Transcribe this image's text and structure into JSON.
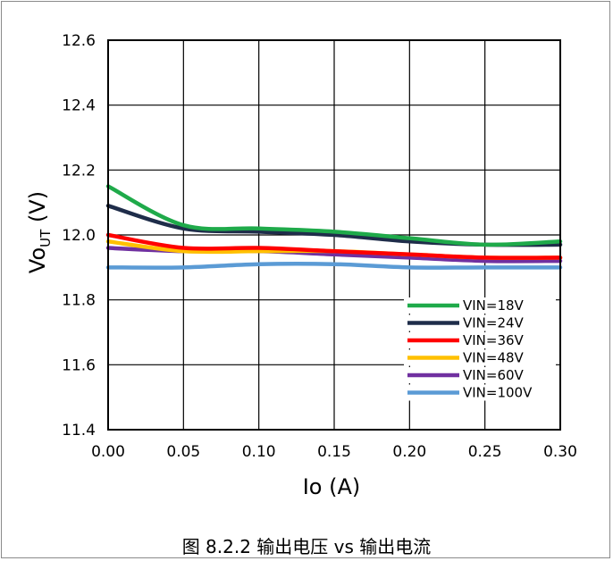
{
  "caption": "图 8.2.2 输出电压 vs 输出电流",
  "chart_data": {
    "type": "line",
    "xlabel": "Io (A)",
    "ylabel_main": "Vo",
    "ylabel_sub": "UT",
    "ylabel_unit": " (V)",
    "xlim": [
      0,
      0.3
    ],
    "ylim": [
      11.4,
      12.6
    ],
    "xticks": [
      "0.00",
      "0.05",
      "0.10",
      "0.15",
      "0.20",
      "0.25",
      "0.30"
    ],
    "yticks": [
      "11.4",
      "11.6",
      "11.8",
      "12.0",
      "12.2",
      "12.4",
      "12.6"
    ],
    "grid": true,
    "legend_position": "bottom-right",
    "x": [
      0,
      0.05,
      0.1,
      0.15,
      0.2,
      0.25,
      0.3
    ],
    "series": [
      {
        "name": "VIN=18V",
        "color": "#1faa4a",
        "values": [
          12.15,
          12.03,
          12.02,
          12.01,
          11.99,
          11.97,
          11.98
        ]
      },
      {
        "name": "VIN=24V",
        "color": "#1f2d4a",
        "values": [
          12.09,
          12.02,
          12.01,
          12.0,
          11.98,
          11.97,
          11.97
        ]
      },
      {
        "name": "VIN=36V",
        "color": "#ff0000",
        "values": [
          12.0,
          11.96,
          11.96,
          11.95,
          11.94,
          11.93,
          11.93
        ]
      },
      {
        "name": "VIN=48V",
        "color": "#ffc000",
        "values": [
          11.98,
          11.95,
          11.95,
          11.95,
          11.94,
          11.93,
          11.93
        ]
      },
      {
        "name": "VIN=60V",
        "color": "#7030a0",
        "values": [
          11.96,
          11.95,
          11.95,
          11.94,
          11.93,
          11.92,
          11.92
        ]
      },
      {
        "name": "VIN=100V",
        "color": "#5b9bd5",
        "values": [
          11.9,
          11.9,
          11.91,
          11.91,
          11.9,
          11.9,
          11.9
        ]
      }
    ]
  }
}
